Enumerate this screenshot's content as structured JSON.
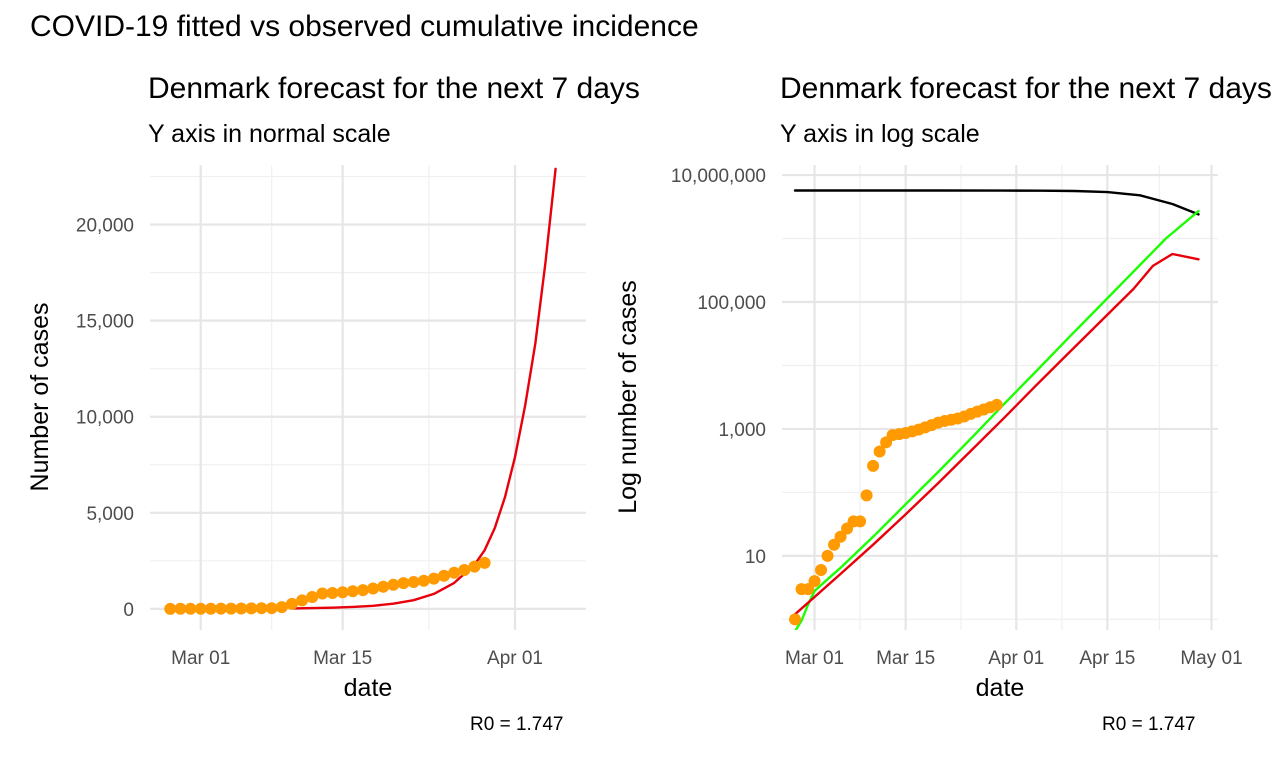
{
  "figure": {
    "title": "COVID-19 fitted vs observed cumulative incidence"
  },
  "chart_data": [
    {
      "type": "line",
      "title": "Denmark forecast for the next 7 days",
      "subtitle": "Y axis in normal scale",
      "xlabel": "date",
      "ylabel": "Number of cases",
      "caption": "R0 = 1.747",
      "x_ticks": [
        "Mar 01",
        "Mar 15",
        "Apr 01"
      ],
      "x_tick_dates": [
        "2020-03-01",
        "2020-03-15",
        "2020-04-01"
      ],
      "y_ticks": [
        0,
        5000,
        10000,
        15000,
        20000
      ],
      "y_tick_labels": [
        "0",
        "5,000",
        "10,000",
        "15,000",
        "20,000"
      ],
      "xlim": [
        "2020-02-25",
        "2020-04-08"
      ],
      "ylim": [
        -1100,
        23100
      ],
      "y_scale": "linear",
      "grid": true,
      "series": [
        {
          "kind": "line",
          "color": "#e8000b",
          "x": [
            "2020-03-10",
            "2020-03-12",
            "2020-03-14",
            "2020-03-16",
            "2020-03-18",
            "2020-03-20",
            "2020-03-22",
            "2020-03-24",
            "2020-03-26",
            "2020-03-28",
            "2020-03-29",
            "2020-03-30",
            "2020-03-31",
            "2020-04-01",
            "2020-04-02",
            "2020-04-03",
            "2020-04-04",
            "2020-04-05"
          ],
          "y": [
            25,
            40,
            60,
            100,
            160,
            270,
            450,
            780,
            1350,
            2300,
            3050,
            4200,
            5800,
            7900,
            10600,
            13800,
            18000,
            22900
          ]
        },
        {
          "kind": "points",
          "color": "#ff9a00",
          "x": [
            "2020-02-27",
            "2020-02-28",
            "2020-02-29",
            "2020-03-01",
            "2020-03-02",
            "2020-03-03",
            "2020-03-04",
            "2020-03-05",
            "2020-03-06",
            "2020-03-07",
            "2020-03-08",
            "2020-03-09",
            "2020-03-10",
            "2020-03-11",
            "2020-03-12",
            "2020-03-13",
            "2020-03-14",
            "2020-03-15",
            "2020-03-16",
            "2020-03-17",
            "2020-03-18",
            "2020-03-19",
            "2020-03-20",
            "2020-03-21",
            "2020-03-22",
            "2020-03-23",
            "2020-03-24",
            "2020-03-25",
            "2020-03-26",
            "2020-03-27",
            "2020-03-28",
            "2020-03-29"
          ],
          "y": [
            1,
            3,
            3,
            4,
            6,
            10,
            15,
            20,
            27,
            35,
            35,
            90,
            262,
            442,
            615,
            801,
            827,
            864,
            914,
            977,
            1057,
            1151,
            1255,
            1337,
            1395,
            1460,
            1572,
            1724,
            1877,
            2023,
            2200,
            2395
          ]
        }
      ]
    },
    {
      "type": "line",
      "title": "Denmark forecast for the next 7 days",
      "subtitle": "Y axis in log scale",
      "xlabel": "date",
      "ylabel": "Log number of cases",
      "caption": "R0 = 1.747",
      "x_ticks": [
        "Mar 01",
        "Mar 15",
        "Apr 01",
        "Apr 15",
        "May 01"
      ],
      "x_tick_dates": [
        "2020-03-01",
        "2020-03-15",
        "2020-04-01",
        "2020-04-15",
        "2020-05-01"
      ],
      "y_ticks": [
        10,
        1000,
        100000,
        10000000
      ],
      "y_tick_labels": [
        "10",
        "1,000",
        "100,000",
        "10,000,000"
      ],
      "xlim": [
        "2020-02-25",
        "2020-05-02"
      ],
      "ylim": [
        0.68,
        14400000
      ],
      "y_scale": "log",
      "grid": true,
      "series": [
        {
          "kind": "line",
          "color": "#000000",
          "x": [
            "2020-02-27",
            "2020-03-10",
            "2020-03-20",
            "2020-03-30",
            "2020-04-05",
            "2020-04-10",
            "2020-04-15",
            "2020-04-20",
            "2020-04-25",
            "2020-04-29"
          ],
          "y": [
            5700000,
            5700000,
            5700000,
            5690000,
            5670000,
            5600000,
            5380000,
            4800000,
            3500000,
            2400000
          ]
        },
        {
          "kind": "line",
          "color": "#1bff00",
          "x": [
            "2020-02-27",
            "2020-02-28",
            "2020-02-29",
            "2020-03-01",
            "2020-03-03",
            "2020-03-05",
            "2020-03-10",
            "2020-03-15",
            "2020-03-20",
            "2020-03-25",
            "2020-03-30",
            "2020-04-04",
            "2020-04-09",
            "2020-04-14",
            "2020-04-19",
            "2020-04-24",
            "2020-04-29"
          ],
          "y": [
            0.65,
            0.95,
            1.7,
            2.8,
            4.3,
            6.5,
            20,
            65,
            210,
            700,
            2400,
            8000,
            27000,
            90000,
            300000,
            1000000,
            2700000
          ]
        },
        {
          "kind": "line",
          "color": "#e8000b",
          "x": [
            "2020-02-27",
            "2020-03-05",
            "2020-03-10",
            "2020-03-15",
            "2020-03-20",
            "2020-03-25",
            "2020-03-30",
            "2020-04-04",
            "2020-04-09",
            "2020-04-14",
            "2020-04-19",
            "2020-04-22",
            "2020-04-25",
            "2020-04-29"
          ],
          "y": [
            1.2,
            5.2,
            15,
            45,
            140,
            450,
            1450,
            4800,
            15500,
            50000,
            160000,
            370000,
            570000,
            470000
          ]
        },
        {
          "kind": "points",
          "color": "#ff9a00",
          "x": [
            "2020-02-27",
            "2020-02-28",
            "2020-02-29",
            "2020-03-01",
            "2020-03-02",
            "2020-03-03",
            "2020-03-04",
            "2020-03-05",
            "2020-03-06",
            "2020-03-07",
            "2020-03-08",
            "2020-03-09",
            "2020-03-10",
            "2020-03-11",
            "2020-03-12",
            "2020-03-13",
            "2020-03-14",
            "2020-03-15",
            "2020-03-16",
            "2020-03-17",
            "2020-03-18",
            "2020-03-19",
            "2020-03-20",
            "2020-03-21",
            "2020-03-22",
            "2020-03-23",
            "2020-03-24",
            "2020-03-25",
            "2020-03-26",
            "2020-03-27",
            "2020-03-28",
            "2020-03-29"
          ],
          "y": [
            1,
            3,
            3,
            4,
            6,
            10,
            15,
            20,
            27,
            35,
            35,
            90,
            262,
            442,
            615,
            801,
            827,
            864,
            914,
            977,
            1057,
            1151,
            1255,
            1337,
            1395,
            1460,
            1572,
            1724,
            1877,
            2023,
            2200,
            2395
          ]
        }
      ]
    }
  ]
}
